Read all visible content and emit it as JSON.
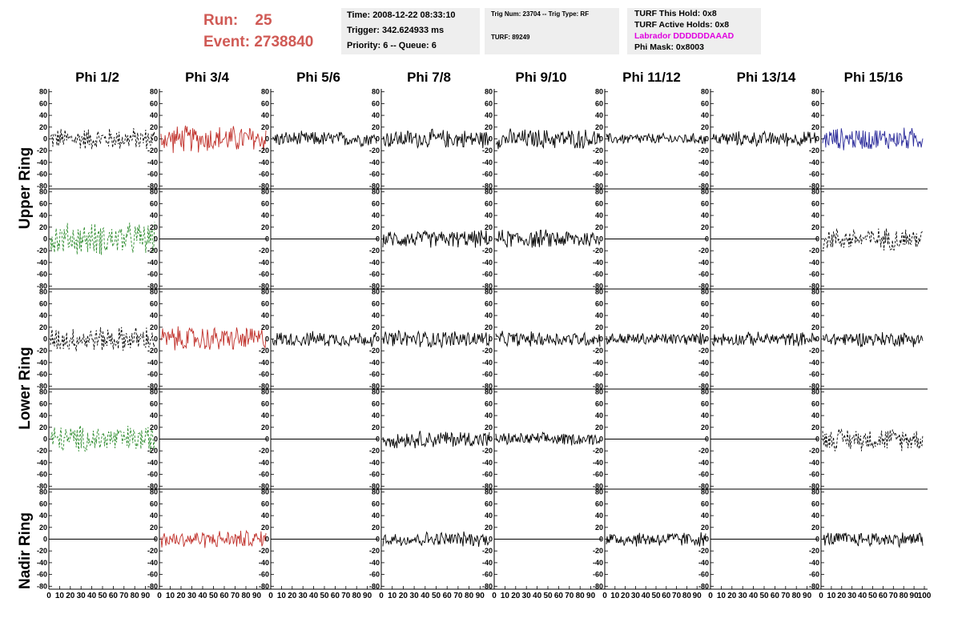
{
  "header": {
    "run_label": "Run:",
    "run_value": "25",
    "event_label": "Event:",
    "event_value": "2738840"
  },
  "info": {
    "time": "Time: 2008-12-22 08:33:10",
    "trigger": "Trigger: 342.624933 ms",
    "priority": "Priority: 6 -- Queue: 6",
    "trig_num": "Trig Num: 23704 -- Trig Type: RF",
    "turf": "TURF: 89249",
    "turf_hold": "TURF This Hold: 0x8",
    "turf_active": "TURF Active Holds: 0x8",
    "labrador": "Labrador DDDDDDAAAD",
    "phi_mask": "Phi Mask: 0x8003"
  },
  "columns": [
    "Phi 1/2",
    "Phi 3/4",
    "Phi 5/6",
    "Phi 7/8",
    "Phi 9/10",
    "Phi 11/12",
    "Phi 13/14",
    "Phi 15/16"
  ],
  "rings": {
    "upper": "Upper Ring",
    "lower": "Lower Ring",
    "nadir": "Nadir Ring"
  },
  "axis": {
    "y_ticks": [
      "80",
      "60",
      "40",
      "20",
      "0",
      "-20",
      "-40",
      "-60",
      "-80"
    ],
    "x_ticks": [
      "0",
      "10",
      "20",
      "30",
      "40",
      "50",
      "60",
      "70",
      "80",
      "90",
      "100"
    ]
  },
  "colors": {
    "title_red": "#d05a55",
    "labrador_magenta": "#e000e0",
    "trace_black": "#000000",
    "trace_red": "#c0302a",
    "trace_green": "#2a8a2a",
    "trace_blue": "#2a2a9a"
  },
  "chart_data": {
    "type": "line",
    "xlim": [
      0,
      100
    ],
    "ylim": [
      -85,
      85
    ],
    "rows": 5,
    "cols": 8,
    "panels": [
      [
        {
          "color": "black",
          "style": "dashed",
          "amp": 18
        },
        {
          "color": "red",
          "style": "solid",
          "amp": 22
        },
        {
          "color": "black",
          "style": "solid",
          "amp": 12
        },
        {
          "color": "black",
          "style": "solid",
          "amp": 15
        },
        {
          "color": "black",
          "style": "solid",
          "amp": 16
        },
        {
          "color": "black",
          "style": "solid",
          "amp": 9
        },
        {
          "color": "black",
          "style": "solid",
          "amp": 12
        },
        {
          "color": "blue",
          "style": "solid",
          "amp": 18
        }
      ],
      [
        {
          "color": "green",
          "style": "dashed",
          "amp": 26
        },
        {
          "color": "flat"
        },
        {
          "color": "flat"
        },
        {
          "color": "black",
          "style": "solid",
          "amp": 14
        },
        {
          "color": "black",
          "style": "solid",
          "amp": 15
        },
        {
          "color": "flat"
        },
        {
          "color": "flat"
        },
        {
          "color": "black",
          "style": "dashed",
          "amp": 18
        }
      ],
      [
        {
          "color": "black",
          "style": "dashed",
          "amp": 20
        },
        {
          "color": "red",
          "style": "solid",
          "amp": 20
        },
        {
          "color": "black",
          "style": "solid",
          "amp": 12
        },
        {
          "color": "black",
          "style": "solid",
          "amp": 14
        },
        {
          "color": "black",
          "style": "solid",
          "amp": 12
        },
        {
          "color": "black",
          "style": "solid",
          "amp": 10
        },
        {
          "color": "black",
          "style": "solid",
          "amp": 11
        },
        {
          "color": "black",
          "style": "solid",
          "amp": 12
        }
      ],
      [
        {
          "color": "green",
          "style": "dashed",
          "amp": 22
        },
        {
          "color": "flat"
        },
        {
          "color": "flat"
        },
        {
          "color": "black",
          "style": "solid",
          "amp": 14
        },
        {
          "color": "black",
          "style": "solid",
          "amp": 10
        },
        {
          "color": "flat"
        },
        {
          "color": "flat"
        },
        {
          "color": "black",
          "style": "dashed",
          "amp": 18
        }
      ],
      [
        {
          "color": "flat"
        },
        {
          "color": "red",
          "style": "solid",
          "amp": 14
        },
        {
          "color": "flat"
        },
        {
          "color": "black",
          "style": "solid",
          "amp": 12
        },
        {
          "color": "flat"
        },
        {
          "color": "black",
          "style": "solid",
          "amp": 12
        },
        {
          "color": "flat"
        },
        {
          "color": "black",
          "style": "solid",
          "amp": 12
        }
      ]
    ]
  }
}
